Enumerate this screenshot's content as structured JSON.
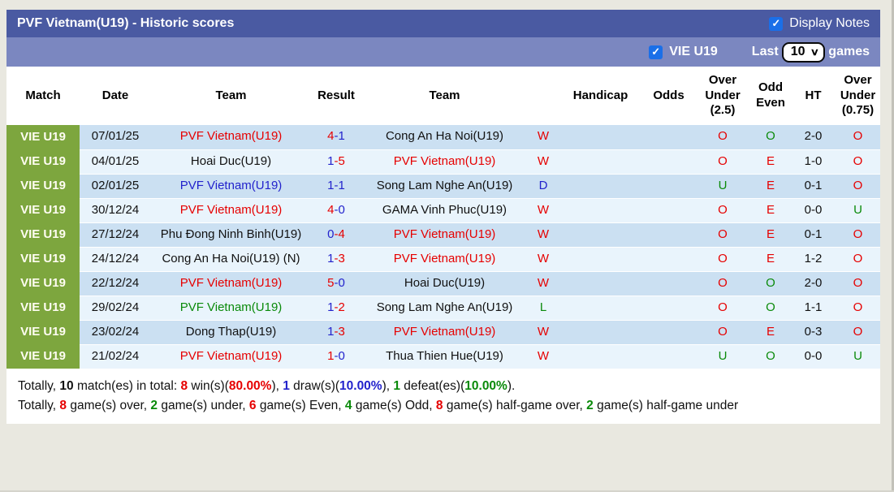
{
  "header": {
    "title": "PVF Vietnam(U19) - Historic scores",
    "display_notes_label": "Display Notes",
    "display_notes_checked": true
  },
  "filter_bar": {
    "team_label": "VIE U19",
    "team_checked": true,
    "last_label": "Last",
    "games_count": "10",
    "games_label": "games"
  },
  "colors": {
    "title_bar": "#4a5aa2",
    "filter_bar": "#7b87c0",
    "badge_green": "#7da63e",
    "row_blue": "#cbe0f2",
    "row_light": "#e9f4fc",
    "checkbox_blue": "#1a6fe8",
    "text_red": "#e60000",
    "text_blue": "#2222cc",
    "text_green": "#0a8a0a"
  },
  "table": {
    "columns": [
      {
        "label": "Match"
      },
      {
        "label": "Date"
      },
      {
        "label": "Team"
      },
      {
        "label": "Result"
      },
      {
        "label": "Team"
      },
      {
        "label": ""
      },
      {
        "label": "Handicap"
      },
      {
        "label": "Odds"
      },
      {
        "label": "Over Under (2.5)"
      },
      {
        "label": "Odd Even"
      },
      {
        "label": "HT"
      },
      {
        "label": "Over Under (0.75)"
      }
    ],
    "rows": [
      {
        "league": "VIE U19",
        "date": "07/01/25",
        "home": {
          "name": "PVF Vietnam(U19)",
          "color": "red"
        },
        "score": {
          "home": "4",
          "away": "1",
          "home_color": "red",
          "away_color": "blue"
        },
        "away": {
          "name": "Cong An Ha Noi(U19)",
          "color": "black"
        },
        "outcome": {
          "letter": "W",
          "color": "red"
        },
        "handicap": "",
        "odds": "",
        "over_under_25": {
          "letter": "O",
          "color": "red"
        },
        "odd_even": {
          "letter": "O",
          "color": "green"
        },
        "ht": "2-0",
        "over_under_075": {
          "letter": "O",
          "color": "red"
        }
      },
      {
        "league": "VIE U19",
        "date": "04/01/25",
        "home": {
          "name": "Hoai Duc(U19)",
          "color": "black"
        },
        "score": {
          "home": "1",
          "away": "5",
          "home_color": "blue",
          "away_color": "red"
        },
        "away": {
          "name": "PVF Vietnam(U19)",
          "color": "red"
        },
        "outcome": {
          "letter": "W",
          "color": "red"
        },
        "handicap": "",
        "odds": "",
        "over_under_25": {
          "letter": "O",
          "color": "red"
        },
        "odd_even": {
          "letter": "E",
          "color": "red"
        },
        "ht": "1-0",
        "over_under_075": {
          "letter": "O",
          "color": "red"
        }
      },
      {
        "league": "VIE U19",
        "date": "02/01/25",
        "home": {
          "name": "PVF Vietnam(U19)",
          "color": "blue"
        },
        "score": {
          "home": "1",
          "away": "1",
          "home_color": "blue",
          "away_color": "blue"
        },
        "away": {
          "name": "Song Lam Nghe An(U19)",
          "color": "black"
        },
        "outcome": {
          "letter": "D",
          "color": "blue"
        },
        "handicap": "",
        "odds": "",
        "over_under_25": {
          "letter": "U",
          "color": "green"
        },
        "odd_even": {
          "letter": "E",
          "color": "red"
        },
        "ht": "0-1",
        "over_under_075": {
          "letter": "O",
          "color": "red"
        }
      },
      {
        "league": "VIE U19",
        "date": "30/12/24",
        "home": {
          "name": "PVF Vietnam(U19)",
          "color": "red"
        },
        "score": {
          "home": "4",
          "away": "0",
          "home_color": "red",
          "away_color": "blue"
        },
        "away": {
          "name": "GAMA Vinh Phuc(U19)",
          "color": "black"
        },
        "outcome": {
          "letter": "W",
          "color": "red"
        },
        "handicap": "",
        "odds": "",
        "over_under_25": {
          "letter": "O",
          "color": "red"
        },
        "odd_even": {
          "letter": "E",
          "color": "red"
        },
        "ht": "0-0",
        "over_under_075": {
          "letter": "U",
          "color": "green"
        }
      },
      {
        "league": "VIE U19",
        "date": "27/12/24",
        "home": {
          "name": "Phu Đong Ninh Binh(U19)",
          "color": "black"
        },
        "score": {
          "home": "0",
          "away": "4",
          "home_color": "blue",
          "away_color": "red"
        },
        "away": {
          "name": "PVF Vietnam(U19)",
          "color": "red"
        },
        "outcome": {
          "letter": "W",
          "color": "red"
        },
        "handicap": "",
        "odds": "",
        "over_under_25": {
          "letter": "O",
          "color": "red"
        },
        "odd_even": {
          "letter": "E",
          "color": "red"
        },
        "ht": "0-1",
        "over_under_075": {
          "letter": "O",
          "color": "red"
        }
      },
      {
        "league": "VIE U19",
        "date": "24/12/24",
        "home": {
          "name": "Cong An Ha Noi(U19) (N)",
          "color": "black"
        },
        "score": {
          "home": "1",
          "away": "3",
          "home_color": "blue",
          "away_color": "red"
        },
        "away": {
          "name": "PVF Vietnam(U19)",
          "color": "red"
        },
        "outcome": {
          "letter": "W",
          "color": "red"
        },
        "handicap": "",
        "odds": "",
        "over_under_25": {
          "letter": "O",
          "color": "red"
        },
        "odd_even": {
          "letter": "E",
          "color": "red"
        },
        "ht": "1-2",
        "over_under_075": {
          "letter": "O",
          "color": "red"
        }
      },
      {
        "league": "VIE U19",
        "date": "22/12/24",
        "home": {
          "name": "PVF Vietnam(U19)",
          "color": "red"
        },
        "score": {
          "home": "5",
          "away": "0",
          "home_color": "red",
          "away_color": "blue"
        },
        "away": {
          "name": "Hoai Duc(U19)",
          "color": "black"
        },
        "outcome": {
          "letter": "W",
          "color": "red"
        },
        "handicap": "",
        "odds": "",
        "over_under_25": {
          "letter": "O",
          "color": "red"
        },
        "odd_even": {
          "letter": "O",
          "color": "green"
        },
        "ht": "2-0",
        "over_under_075": {
          "letter": "O",
          "color": "red"
        }
      },
      {
        "league": "VIE U19",
        "date": "29/02/24",
        "home": {
          "name": "PVF Vietnam(U19)",
          "color": "green"
        },
        "score": {
          "home": "1",
          "away": "2",
          "home_color": "blue",
          "away_color": "red"
        },
        "away": {
          "name": "Song Lam Nghe An(U19)",
          "color": "black"
        },
        "outcome": {
          "letter": "L",
          "color": "green"
        },
        "handicap": "",
        "odds": "",
        "over_under_25": {
          "letter": "O",
          "color": "red"
        },
        "odd_even": {
          "letter": "O",
          "color": "green"
        },
        "ht": "1-1",
        "over_under_075": {
          "letter": "O",
          "color": "red"
        }
      },
      {
        "league": "VIE U19",
        "date": "23/02/24",
        "home": {
          "name": "Dong Thap(U19)",
          "color": "black"
        },
        "score": {
          "home": "1",
          "away": "3",
          "home_color": "blue",
          "away_color": "red"
        },
        "away": {
          "name": "PVF Vietnam(U19)",
          "color": "red"
        },
        "outcome": {
          "letter": "W",
          "color": "red"
        },
        "handicap": "",
        "odds": "",
        "over_under_25": {
          "letter": "O",
          "color": "red"
        },
        "odd_even": {
          "letter": "E",
          "color": "red"
        },
        "ht": "0-3",
        "over_under_075": {
          "letter": "O",
          "color": "red"
        }
      },
      {
        "league": "VIE U19",
        "date": "21/02/24",
        "home": {
          "name": "PVF Vietnam(U19)",
          "color": "red"
        },
        "score": {
          "home": "1",
          "away": "0",
          "home_color": "red",
          "away_color": "blue"
        },
        "away": {
          "name": "Thua Thien Hue(U19)",
          "color": "black"
        },
        "outcome": {
          "letter": "W",
          "color": "red"
        },
        "handicap": "",
        "odds": "",
        "over_under_25": {
          "letter": "U",
          "color": "green"
        },
        "odd_even": {
          "letter": "O",
          "color": "green"
        },
        "ht": "0-0",
        "over_under_075": {
          "letter": "U",
          "color": "green"
        }
      }
    ]
  },
  "summary": {
    "line1": [
      {
        "text": "Totally, "
      },
      {
        "text": "10",
        "bold": true
      },
      {
        "text": " match(es) in total: "
      },
      {
        "text": "8",
        "bold": true,
        "color": "red"
      },
      {
        "text": " win(s)("
      },
      {
        "text": "80.00%",
        "bold": true,
        "color": "red"
      },
      {
        "text": "), "
      },
      {
        "text": "1",
        "bold": true,
        "color": "blue"
      },
      {
        "text": " draw(s)("
      },
      {
        "text": "10.00%",
        "bold": true,
        "color": "blue"
      },
      {
        "text": "), "
      },
      {
        "text": "1",
        "bold": true,
        "color": "green"
      },
      {
        "text": " defeat(es)("
      },
      {
        "text": "10.00%",
        "bold": true,
        "color": "green"
      },
      {
        "text": ")."
      }
    ],
    "line2": [
      {
        "text": "Totally, "
      },
      {
        "text": "8",
        "bold": true,
        "color": "red"
      },
      {
        "text": " game(s) over, "
      },
      {
        "text": "2",
        "bold": true,
        "color": "green"
      },
      {
        "text": " game(s) under, "
      },
      {
        "text": "6",
        "bold": true,
        "color": "red"
      },
      {
        "text": " game(s) Even, "
      },
      {
        "text": "4",
        "bold": true,
        "color": "green"
      },
      {
        "text": " game(s) Odd, "
      },
      {
        "text": "8",
        "bold": true,
        "color": "red"
      },
      {
        "text": " game(s) half-game over, "
      },
      {
        "text": "2",
        "bold": true,
        "color": "green"
      },
      {
        "text": " game(s) half-game under"
      }
    ]
  }
}
